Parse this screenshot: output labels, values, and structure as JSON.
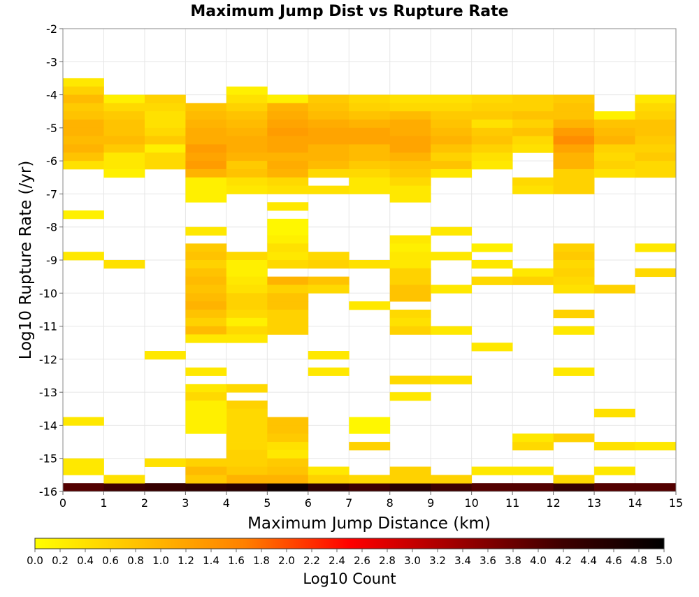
{
  "chart_data": {
    "type": "heatmap",
    "title": "Maximum Jump Dist vs Rupture Rate",
    "xlabel": "Maximum Jump Distance (km)",
    "ylabel": "Log10 Rupture Rate (/yr)",
    "xlim": [
      0,
      15
    ],
    "ylim": [
      -16,
      -2
    ],
    "x_bin_width": 1,
    "y_bin_height": 0.25,
    "xticks": [
      "0",
      "1",
      "2",
      "3",
      "4",
      "5",
      "6",
      "7",
      "8",
      "9",
      "10",
      "11",
      "12",
      "13",
      "14",
      "15"
    ],
    "yticks": [
      "-2",
      "-3",
      "-4",
      "-5",
      "-6",
      "-7",
      "-8",
      "-9",
      "-10",
      "-11",
      "-12",
      "-13",
      "-14",
      "-15",
      "-16"
    ],
    "grid": true,
    "colorbar": {
      "label": "Log10 Count",
      "min": 0.0,
      "max": 5.0,
      "ticks": [
        "0.0",
        "0.2",
        "0.4",
        "0.6",
        "0.8",
        "1.0",
        "1.2",
        "1.4",
        "1.6",
        "1.8",
        "2.0",
        "2.2",
        "2.4",
        "2.6",
        "2.8",
        "3.0",
        "3.2",
        "3.4",
        "3.6",
        "3.8",
        "4.0",
        "4.2",
        "4.4",
        "4.6",
        "4.8",
        "5.0"
      ],
      "placement": "bottom",
      "colors": [
        "#ffff00",
        "#ffc000",
        "#ff8000",
        "#ff0000",
        "#a00000",
        "#400000",
        "#000000"
      ]
    },
    "cells": [
      [
        0,
        -16,
        4.0
      ],
      [
        1,
        -16,
        4.2
      ],
      [
        2,
        -16,
        4.3
      ],
      [
        3,
        -16,
        4.4
      ],
      [
        4,
        -16,
        4.5
      ],
      [
        5,
        -16,
        4.8
      ],
      [
        6,
        -16,
        4.4
      ],
      [
        7,
        -16,
        4.2
      ],
      [
        8,
        -16,
        4.5
      ],
      [
        9,
        -16,
        4.2
      ],
      [
        10,
        -16,
        4.0
      ],
      [
        11,
        -16,
        4.0
      ],
      [
        12,
        -16,
        4.3
      ],
      [
        13,
        -16,
        4.0
      ],
      [
        14,
        -16,
        4.0
      ],
      [
        0,
        -3.75,
        0.3
      ],
      [
        0,
        -4.0,
        0.6
      ],
      [
        0,
        -4.25,
        0.9
      ],
      [
        0,
        -4.5,
        0.7
      ],
      [
        0,
        -4.75,
        0.8
      ],
      [
        0,
        -5.0,
        1.0
      ],
      [
        0,
        -5.25,
        1.0
      ],
      [
        0,
        -5.5,
        0.9
      ],
      [
        0,
        -5.75,
        1.0
      ],
      [
        0,
        -6.0,
        0.8
      ],
      [
        0,
        -6.25,
        0.4
      ],
      [
        1,
        -4.25,
        0.2
      ],
      [
        1,
        -4.5,
        0.5
      ],
      [
        1,
        -4.75,
        0.7
      ],
      [
        1,
        -5.0,
        0.8
      ],
      [
        1,
        -5.25,
        0.8
      ],
      [
        1,
        -5.5,
        0.9
      ],
      [
        1,
        -5.75,
        0.7
      ],
      [
        1,
        -6.0,
        0.3
      ],
      [
        1,
        -6.25,
        0.3
      ],
      [
        1,
        -6.5,
        0.2
      ],
      [
        2,
        -4.25,
        0.6
      ],
      [
        2,
        -4.5,
        0.5
      ],
      [
        2,
        -4.75,
        0.4
      ],
      [
        2,
        -5.0,
        0.4
      ],
      [
        2,
        -5.25,
        0.5
      ],
      [
        2,
        -5.5,
        0.7
      ],
      [
        2,
        -5.75,
        0.2
      ],
      [
        2,
        -6.0,
        0.5
      ],
      [
        2,
        -6.25,
        0.5
      ],
      [
        3,
        -4.5,
        0.8
      ],
      [
        3,
        -4.75,
        0.9
      ],
      [
        3,
        -5.0,
        1.0
      ],
      [
        3,
        -5.25,
        1.1
      ],
      [
        3,
        -5.5,
        1.1
      ],
      [
        3,
        -5.75,
        1.3
      ],
      [
        3,
        -6.0,
        1.2
      ],
      [
        3,
        -6.25,
        1.3
      ],
      [
        3,
        -6.5,
        1.0
      ],
      [
        3,
        -6.75,
        0.2
      ],
      [
        3,
        -7.0,
        0.2
      ],
      [
        4,
        -4.0,
        0.2
      ],
      [
        4,
        -4.25,
        0.4
      ],
      [
        4,
        -4.5,
        0.6
      ],
      [
        4,
        -4.75,
        0.8
      ],
      [
        4,
        -5.0,
        0.9
      ],
      [
        4,
        -5.25,
        1.0
      ],
      [
        4,
        -5.5,
        1.1
      ],
      [
        4,
        -5.75,
        1.1
      ],
      [
        4,
        -6.0,
        1.0
      ],
      [
        4,
        -6.25,
        0.7
      ],
      [
        4,
        -6.5,
        0.8
      ],
      [
        4,
        -6.75,
        0.4
      ],
      [
        5,
        -4.25,
        0.2
      ],
      [
        5,
        -4.5,
        1.0
      ],
      [
        5,
        -4.75,
        1.1
      ],
      [
        5,
        -5.0,
        1.2
      ],
      [
        5,
        -5.25,
        1.3
      ],
      [
        5,
        -5.5,
        1.2
      ],
      [
        5,
        -5.75,
        1.2
      ],
      [
        5,
        -6.0,
        1.0
      ],
      [
        5,
        -6.25,
        1.1
      ],
      [
        5,
        -6.5,
        1.0
      ],
      [
        5,
        -6.75,
        0.5
      ],
      [
        6,
        -4.25,
        0.7
      ],
      [
        6,
        -4.5,
        0.8
      ],
      [
        6,
        -4.75,
        0.9
      ],
      [
        6,
        -5.0,
        1.1
      ],
      [
        6,
        -5.25,
        1.2
      ],
      [
        6,
        -5.5,
        1.2
      ],
      [
        6,
        -5.75,
        1.0
      ],
      [
        6,
        -6.0,
        1.0
      ],
      [
        6,
        -6.25,
        0.9
      ],
      [
        6,
        -6.5,
        0.5
      ],
      [
        7,
        -4.25,
        0.5
      ],
      [
        7,
        -4.5,
        0.6
      ],
      [
        7,
        -4.75,
        0.8
      ],
      [
        7,
        -5.0,
        1.0
      ],
      [
        7,
        -5.25,
        1.2
      ],
      [
        7,
        -5.5,
        1.2
      ],
      [
        7,
        -5.75,
        0.9
      ],
      [
        7,
        -6.0,
        0.9
      ],
      [
        7,
        -6.25,
        0.7
      ],
      [
        7,
        -6.5,
        0.5
      ],
      [
        7,
        -6.75,
        0.3
      ],
      [
        8,
        -4.25,
        0.4
      ],
      [
        8,
        -4.5,
        0.5
      ],
      [
        8,
        -4.75,
        0.9
      ],
      [
        8,
        -5.0,
        1.1
      ],
      [
        8,
        -5.25,
        1.1
      ],
      [
        8,
        -5.5,
        1.2
      ],
      [
        8,
        -5.75,
        1.2
      ],
      [
        8,
        -6.0,
        1.0
      ],
      [
        8,
        -6.25,
        0.8
      ],
      [
        8,
        -6.5,
        0.7
      ],
      [
        8,
        -6.75,
        0.5
      ],
      [
        8,
        -7.0,
        0.3
      ],
      [
        9,
        -4.25,
        0.4
      ],
      [
        9,
        -4.5,
        0.5
      ],
      [
        9,
        -4.75,
        0.7
      ],
      [
        9,
        -5.0,
        0.8
      ],
      [
        9,
        -5.25,
        0.9
      ],
      [
        9,
        -5.5,
        1.0
      ],
      [
        9,
        -5.75,
        0.8
      ],
      [
        9,
        -6.0,
        0.6
      ],
      [
        9,
        -6.25,
        0.8
      ],
      [
        9,
        -6.5,
        0.3
      ],
      [
        10,
        -4.25,
        0.5
      ],
      [
        10,
        -4.5,
        0.6
      ],
      [
        10,
        -4.75,
        0.7
      ],
      [
        10,
        -5.0,
        0.4
      ],
      [
        10,
        -5.25,
        0.7
      ],
      [
        10,
        -5.5,
        0.8
      ],
      [
        10,
        -5.75,
        0.6
      ],
      [
        10,
        -6.0,
        0.4
      ],
      [
        10,
        -6.25,
        0.3
      ],
      [
        11,
        -4.25,
        0.6
      ],
      [
        11,
        -4.5,
        0.6
      ],
      [
        11,
        -4.75,
        0.8
      ],
      [
        11,
        -5.0,
        0.6
      ],
      [
        11,
        -5.25,
        0.8
      ],
      [
        11,
        -5.5,
        0.5
      ],
      [
        11,
        -5.75,
        0.4
      ],
      [
        11,
        -6.75,
        0.5
      ],
      [
        12,
        -4.25,
        0.7
      ],
      [
        12,
        -4.5,
        0.8
      ],
      [
        12,
        -4.75,
        0.8
      ],
      [
        12,
        -5.0,
        1.0
      ],
      [
        12,
        -5.25,
        1.3
      ],
      [
        12,
        -5.5,
        1.5
      ],
      [
        12,
        -5.75,
        1.2
      ],
      [
        12,
        -6.0,
        1.0
      ],
      [
        12,
        -6.25,
        1.0
      ],
      [
        12,
        -6.5,
        0.6
      ],
      [
        12,
        -6.75,
        0.6
      ],
      [
        13,
        -4.75,
        0.2
      ],
      [
        13,
        -5.0,
        0.8
      ],
      [
        13,
        -5.25,
        0.9
      ],
      [
        13,
        -5.5,
        1.0
      ],
      [
        13,
        -5.75,
        0.6
      ],
      [
        13,
        -6.0,
        0.5
      ],
      [
        13,
        -6.25,
        0.6
      ],
      [
        13,
        -6.5,
        0.4
      ],
      [
        14,
        -4.25,
        0.3
      ],
      [
        14,
        -4.5,
        0.5
      ],
      [
        14,
        -4.75,
        0.6
      ],
      [
        14,
        -5.0,
        0.8
      ],
      [
        14,
        -5.25,
        0.8
      ],
      [
        14,
        -5.5,
        0.7
      ],
      [
        14,
        -5.75,
        0.6
      ],
      [
        14,
        -6.0,
        0.7
      ],
      [
        14,
        -6.25,
        0.5
      ],
      [
        14,
        -6.5,
        0.5
      ],
      [
        3,
        -7.25,
        0.2
      ],
      [
        4,
        -7.0,
        0.3
      ],
      [
        5,
        -7.0,
        0.4
      ],
      [
        6,
        -7.0,
        0.4
      ],
      [
        7,
        -7.0,
        0.3
      ],
      [
        8,
        -7.25,
        0.3
      ],
      [
        11,
        -7.0,
        0.4
      ],
      [
        12,
        -7.0,
        0.6
      ],
      [
        5,
        -7.5,
        0.3
      ],
      [
        0,
        -7.75,
        0.2
      ],
      [
        3,
        -8.25,
        0.3
      ],
      [
        5,
        -8.0,
        0.1
      ],
      [
        5,
        -8.25,
        0.1
      ],
      [
        5,
        -8.5,
        0.2
      ],
      [
        5,
        -8.75,
        0.4
      ],
      [
        9,
        -8.25,
        0.3
      ],
      [
        0,
        -9.0,
        0.3
      ],
      [
        1,
        -9.25,
        0.4
      ],
      [
        3,
        -8.75,
        0.7
      ],
      [
        3,
        -9.0,
        0.8
      ],
      [
        3,
        -9.25,
        0.6
      ],
      [
        3,
        -9.5,
        0.8
      ],
      [
        3,
        -9.75,
        0.9
      ],
      [
        3,
        -10.0,
        0.8
      ],
      [
        3,
        -10.25,
        0.9
      ],
      [
        3,
        -10.5,
        1.0
      ],
      [
        3,
        -10.75,
        0.8
      ],
      [
        3,
        -11.0,
        0.6
      ],
      [
        3,
        -11.25,
        0.9
      ],
      [
        3,
        -11.5,
        0.3
      ],
      [
        4,
        -9.0,
        0.5
      ],
      [
        4,
        -9.25,
        0.2
      ],
      [
        4,
        -9.5,
        0.2
      ],
      [
        4,
        -9.75,
        0.3
      ],
      [
        4,
        -10.0,
        0.4
      ],
      [
        4,
        -10.25,
        0.6
      ],
      [
        4,
        -10.5,
        0.6
      ],
      [
        4,
        -10.75,
        0.5
      ],
      [
        4,
        -11.0,
        0.2
      ],
      [
        4,
        -11.25,
        0.5
      ],
      [
        4,
        -11.5,
        0.3
      ],
      [
        5,
        -9.0,
        0.3
      ],
      [
        5,
        -9.25,
        0.5
      ],
      [
        5,
        -9.75,
        1.0
      ],
      [
        5,
        -10.0,
        0.6
      ],
      [
        5,
        -10.25,
        0.8
      ],
      [
        5,
        -10.5,
        0.8
      ],
      [
        5,
        -10.75,
        0.6
      ],
      [
        5,
        -11.0,
        0.6
      ],
      [
        5,
        -11.25,
        0.6
      ],
      [
        6,
        -9.0,
        0.5
      ],
      [
        6,
        -9.25,
        0.6
      ],
      [
        6,
        -9.75,
        0.8
      ],
      [
        6,
        -10.0,
        0.5
      ],
      [
        7,
        -9.25,
        0.4
      ],
      [
        7,
        -10.5,
        0.3
      ],
      [
        8,
        -8.5,
        0.3
      ],
      [
        8,
        -8.75,
        0.2
      ],
      [
        8,
        -9.0,
        0.3
      ],
      [
        8,
        -9.25,
        0.3
      ],
      [
        8,
        -9.5,
        0.6
      ],
      [
        8,
        -9.75,
        0.6
      ],
      [
        8,
        -10.0,
        0.8
      ],
      [
        8,
        -10.25,
        0.8
      ],
      [
        8,
        -10.75,
        0.5
      ],
      [
        8,
        -11.0,
        0.4
      ],
      [
        8,
        -11.25,
        0.6
      ],
      [
        9,
        -9.0,
        0.3
      ],
      [
        9,
        -10.0,
        0.3
      ],
      [
        9,
        -11.25,
        0.3
      ],
      [
        10,
        -8.75,
        0.2
      ],
      [
        10,
        -9.25,
        0.3
      ],
      [
        10,
        -9.75,
        0.5
      ],
      [
        11,
        -9.5,
        0.3
      ],
      [
        11,
        -9.75,
        0.6
      ],
      [
        12,
        -8.75,
        0.6
      ],
      [
        12,
        -9.0,
        0.7
      ],
      [
        12,
        -9.25,
        0.5
      ],
      [
        12,
        -9.5,
        0.6
      ],
      [
        12,
        -9.75,
        0.5
      ],
      [
        12,
        -10.0,
        0.4
      ],
      [
        12,
        -10.75,
        0.6
      ],
      [
        12,
        -11.25,
        0.3
      ],
      [
        13,
        -10.0,
        0.6
      ],
      [
        14,
        -8.75,
        0.3
      ],
      [
        14,
        -9.5,
        0.5
      ],
      [
        2,
        -12.0,
        0.3
      ],
      [
        6,
        -12.0,
        0.3
      ],
      [
        10,
        -11.75,
        0.3
      ],
      [
        3,
        -12.5,
        0.3
      ],
      [
        6,
        -12.5,
        0.3
      ],
      [
        12,
        -12.5,
        0.3
      ],
      [
        8,
        -12.75,
        0.5
      ],
      [
        9,
        -12.75,
        0.4
      ],
      [
        3,
        -13.0,
        0.3
      ],
      [
        4,
        -13.0,
        0.5
      ],
      [
        3,
        -13.25,
        0.5
      ],
      [
        8,
        -13.25,
        0.3
      ],
      [
        13,
        -13.75,
        0.4
      ],
      [
        4,
        -13.5,
        0.6
      ],
      [
        4,
        -13.75,
        0.5
      ],
      [
        4,
        -14.0,
        0.5
      ],
      [
        4,
        -14.25,
        0.5
      ],
      [
        4,
        -14.5,
        0.5
      ],
      [
        4,
        -14.75,
        0.5
      ],
      [
        4,
        -15.0,
        0.6
      ],
      [
        4,
        -15.25,
        0.6
      ],
      [
        4,
        -15.5,
        0.7
      ],
      [
        4,
        -15.75,
        1.0
      ],
      [
        3,
        -13.5,
        0.2
      ],
      [
        3,
        -13.75,
        0.2
      ],
      [
        3,
        -14.0,
        0.2
      ],
      [
        3,
        -14.25,
        0.2
      ],
      [
        3,
        -15.25,
        0.6
      ],
      [
        3,
        -15.5,
        0.9
      ],
      [
        3,
        -15.75,
        0.7
      ],
      [
        5,
        -14.0,
        0.8
      ],
      [
        5,
        -14.25,
        0.8
      ],
      [
        5,
        -14.5,
        0.7
      ],
      [
        5,
        -14.75,
        0.4
      ],
      [
        5,
        -15.0,
        0.3
      ],
      [
        5,
        -15.25,
        0.7
      ],
      [
        5,
        -15.5,
        0.8
      ],
      [
        5,
        -15.75,
        1.0
      ],
      [
        0,
        -14.0,
        0.3
      ],
      [
        0,
        -15.25,
        0.3
      ],
      [
        0,
        -15.5,
        0.3
      ],
      [
        1,
        -15.75,
        0.4
      ],
      [
        2,
        -15.25,
        0.4
      ],
      [
        6,
        -15.5,
        0.3
      ],
      [
        6,
        -15.75,
        0.6
      ],
      [
        7,
        -14.0,
        0.1
      ],
      [
        7,
        -14.25,
        0.1
      ],
      [
        7,
        -14.75,
        0.6
      ],
      [
        7,
        -15.75,
        0.5
      ],
      [
        8,
        -15.5,
        0.6
      ],
      [
        8,
        -15.75,
        0.6
      ],
      [
        9,
        -15.75,
        0.6
      ],
      [
        10,
        -15.5,
        0.3
      ],
      [
        11,
        -14.5,
        0.3
      ],
      [
        11,
        -14.75,
        0.5
      ],
      [
        11,
        -15.5,
        0.3
      ],
      [
        12,
        -14.5,
        0.6
      ],
      [
        12,
        -15.75,
        0.5
      ],
      [
        13,
        -14.75,
        0.4
      ],
      [
        13,
        -15.5,
        0.3
      ],
      [
        14,
        -14.75,
        0.3
      ]
    ]
  }
}
